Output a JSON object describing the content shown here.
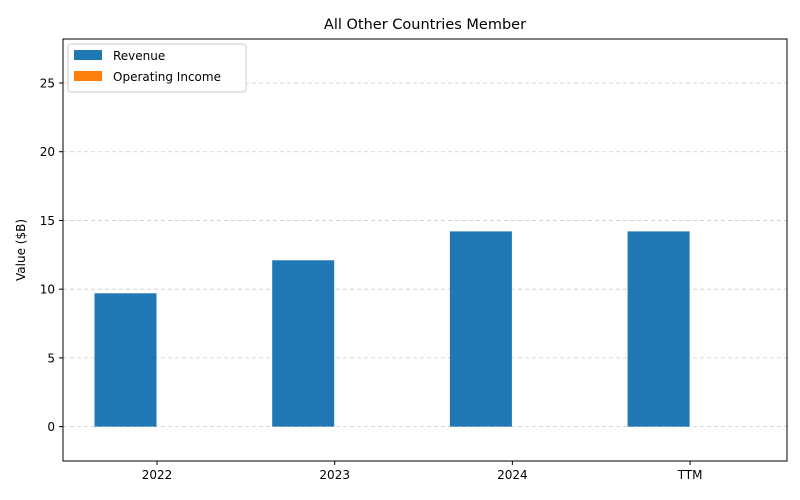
{
  "chart_data": {
    "type": "bar",
    "title": "All Other Countries Member",
    "xlabel": "",
    "ylabel": "Value ($B)",
    "categories": [
      "2022",
      "2023",
      "2024",
      "TTM"
    ],
    "series": [
      {
        "name": "Revenue",
        "color": "#1f77b4",
        "values": [
          9.7,
          12.1,
          14.2,
          14.2
        ]
      },
      {
        "name": "Operating Income",
        "color": "#ff7f0e",
        "values": [
          0,
          0,
          0,
          0
        ]
      }
    ],
    "ylim": [
      -2.5,
      28.2
    ],
    "yticks": [
      0,
      5,
      10,
      15,
      20,
      25
    ],
    "grid": "y-dashed",
    "legend": "top-left"
  }
}
